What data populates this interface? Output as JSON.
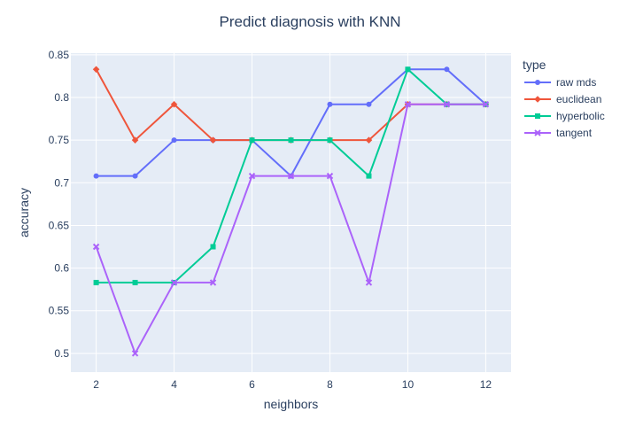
{
  "chart_data": {
    "type": "line",
    "title": "Predict diagnosis with KNN",
    "xlabel": "neighbors",
    "ylabel": "accuracy",
    "xlim": [
      1.35,
      12.65
    ],
    "ylim": [
      0.478,
      0.852
    ],
    "x_ticks": [
      2,
      4,
      6,
      8,
      10,
      12
    ],
    "x_tick_labels": [
      "2",
      "4",
      "6",
      "8",
      "10",
      "12"
    ],
    "y_ticks": [
      0.5,
      0.55,
      0.6,
      0.65,
      0.7,
      0.75,
      0.8,
      0.85
    ],
    "y_tick_labels": [
      "0.5",
      "0.55",
      "0.6",
      "0.65",
      "0.7",
      "0.75",
      "0.8",
      "0.85"
    ],
    "grid": true,
    "legend": {
      "title": "type",
      "placement": "right"
    },
    "x": [
      2,
      3,
      4,
      5,
      6,
      7,
      8,
      9,
      10,
      11,
      12
    ],
    "series": [
      {
        "name": "raw mds",
        "color": "#636efa",
        "marker": "circle",
        "values": [
          0.708,
          0.708,
          0.75,
          0.75,
          0.75,
          0.708,
          0.792,
          0.792,
          0.833,
          0.833,
          0.792
        ]
      },
      {
        "name": "euclidean",
        "color": "#ef553b",
        "marker": "diamond",
        "values": [
          0.833,
          0.75,
          0.792,
          0.75,
          0.75,
          0.75,
          0.75,
          0.75,
          0.792,
          0.792,
          0.792
        ]
      },
      {
        "name": "hyperbolic",
        "color": "#00cc96",
        "marker": "square",
        "values": [
          0.583,
          0.583,
          0.583,
          0.625,
          0.75,
          0.75,
          0.75,
          0.708,
          0.833,
          0.792,
          0.792
        ]
      },
      {
        "name": "tangent",
        "color": "#ab63fa",
        "marker": "x",
        "values": [
          0.625,
          0.5,
          0.583,
          0.583,
          0.708,
          0.708,
          0.708,
          0.583,
          0.792,
          0.792,
          0.792
        ]
      }
    ]
  },
  "colors": {
    "plot_background": "#e5ecf6",
    "grid": "#ffffff",
    "text": "#2a3f5f"
  }
}
